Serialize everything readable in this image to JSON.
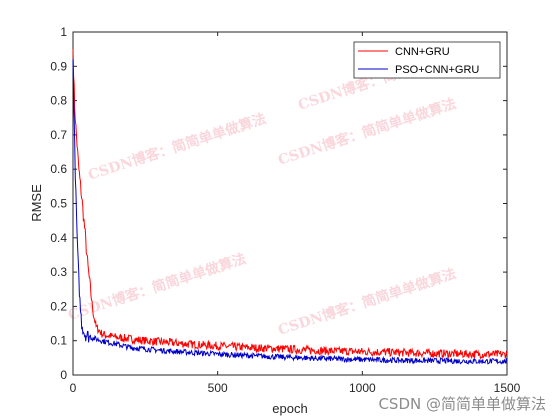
{
  "chart_data": {
    "type": "line",
    "title": "",
    "xlabel": "epoch",
    "ylabel": "RMSE",
    "xlim": [
      0,
      1500
    ],
    "ylim": [
      0,
      1
    ],
    "xticks": [
      "0",
      "500",
      "1000",
      "1500"
    ],
    "yticks": [
      "0",
      "0.1",
      "0.2",
      "0.3",
      "0.4",
      "0.5",
      "0.6",
      "0.7",
      "0.8",
      "0.9",
      "1"
    ],
    "grid": false,
    "legend_position": "top-right",
    "series": [
      {
        "name": "CNN+GRU",
        "color": "#ff0000",
        "x": [
          0,
          5,
          10,
          15,
          20,
          30,
          40,
          50,
          60,
          70,
          80,
          90,
          100,
          120,
          150,
          200,
          250,
          300,
          400,
          500,
          600,
          700,
          800,
          900,
          1000,
          1100,
          1200,
          1300,
          1400,
          1500
        ],
        "y": [
          0.95,
          0.8,
          0.72,
          0.66,
          0.6,
          0.52,
          0.43,
          0.33,
          0.25,
          0.18,
          0.14,
          0.13,
          0.12,
          0.115,
          0.11,
          0.105,
          0.1,
          0.097,
          0.09,
          0.085,
          0.08,
          0.077,
          0.073,
          0.07,
          0.068,
          0.066,
          0.064,
          0.062,
          0.061,
          0.06
        ]
      },
      {
        "name": "PSO+CNN+GRU",
        "color": "#0000c8",
        "x": [
          0,
          5,
          10,
          15,
          20,
          25,
          30,
          40,
          50,
          60,
          80,
          100,
          150,
          200,
          300,
          400,
          500,
          600,
          700,
          800,
          900,
          1000,
          1100,
          1200,
          1300,
          1400,
          1500
        ],
        "y": [
          0.92,
          0.7,
          0.52,
          0.38,
          0.28,
          0.2,
          0.15,
          0.12,
          0.115,
          0.11,
          0.105,
          0.1,
          0.09,
          0.08,
          0.072,
          0.066,
          0.061,
          0.057,
          0.053,
          0.05,
          0.047,
          0.045,
          0.043,
          0.042,
          0.041,
          0.04,
          0.04
        ]
      }
    ]
  },
  "watermarks": [
    "CSDN博客：简简单单做算法",
    "CSDN博客：简简单单做算法",
    "CSDN博客：简简单单做算法",
    "CSDN博客：简简单单做算法",
    "CSDN博客：简简单单做算法"
  ],
  "credit": "CSDN @简简单单做算法"
}
